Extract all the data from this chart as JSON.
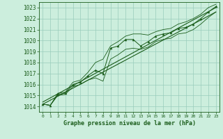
{
  "title": "Graphe pression niveau de la mer (hPa)",
  "bg_color": "#cceedd",
  "grid_color": "#99ccbb",
  "line_color": "#1a5c1a",
  "ylim": [
    1013.5,
    1023.5
  ],
  "xlim": [
    -0.5,
    23.5
  ],
  "yticks": [
    1014,
    1015,
    1016,
    1017,
    1018,
    1019,
    1020,
    1021,
    1022,
    1023
  ],
  "xticks": [
    0,
    1,
    2,
    3,
    4,
    5,
    6,
    7,
    8,
    9,
    10,
    11,
    12,
    13,
    14,
    15,
    16,
    17,
    18,
    19,
    20,
    21,
    22,
    23
  ],
  "pressure_data": [
    1014.2,
    1014.1,
    1015.1,
    1015.2,
    1016.0,
    1016.2,
    1016.8,
    1017.3,
    1017.0,
    1019.3,
    1019.5,
    1020.1,
    1020.1,
    1019.5,
    1019.9,
    1020.4,
    1020.6,
    1020.7,
    1021.1,
    1021.2,
    1021.5,
    1022.0,
    1022.6,
    1023.1
  ],
  "min_data": [
    1014.2,
    1014.1,
    1015.0,
    1015.1,
    1015.8,
    1016.0,
    1016.4,
    1016.6,
    1016.3,
    1018.3,
    1018.7,
    1019.2,
    1019.3,
    1019.2,
    1019.4,
    1019.9,
    1020.1,
    1020.2,
    1020.6,
    1020.7,
    1021.0,
    1021.5,
    1022.1,
    1022.6
  ],
  "max_data": [
    1014.2,
    1014.1,
    1015.2,
    1015.3,
    1016.2,
    1016.4,
    1017.1,
    1018.0,
    1018.3,
    1019.5,
    1019.9,
    1020.4,
    1020.6,
    1020.6,
    1020.5,
    1020.8,
    1021.0,
    1021.1,
    1021.5,
    1021.7,
    1022.0,
    1022.4,
    1023.0,
    1023.3
  ],
  "trend_line": [
    [
      0,
      1014.4
    ],
    [
      23,
      1023.0
    ]
  ],
  "trend_line2": [
    [
      0,
      1014.2
    ],
    [
      23,
      1022.6
    ]
  ]
}
